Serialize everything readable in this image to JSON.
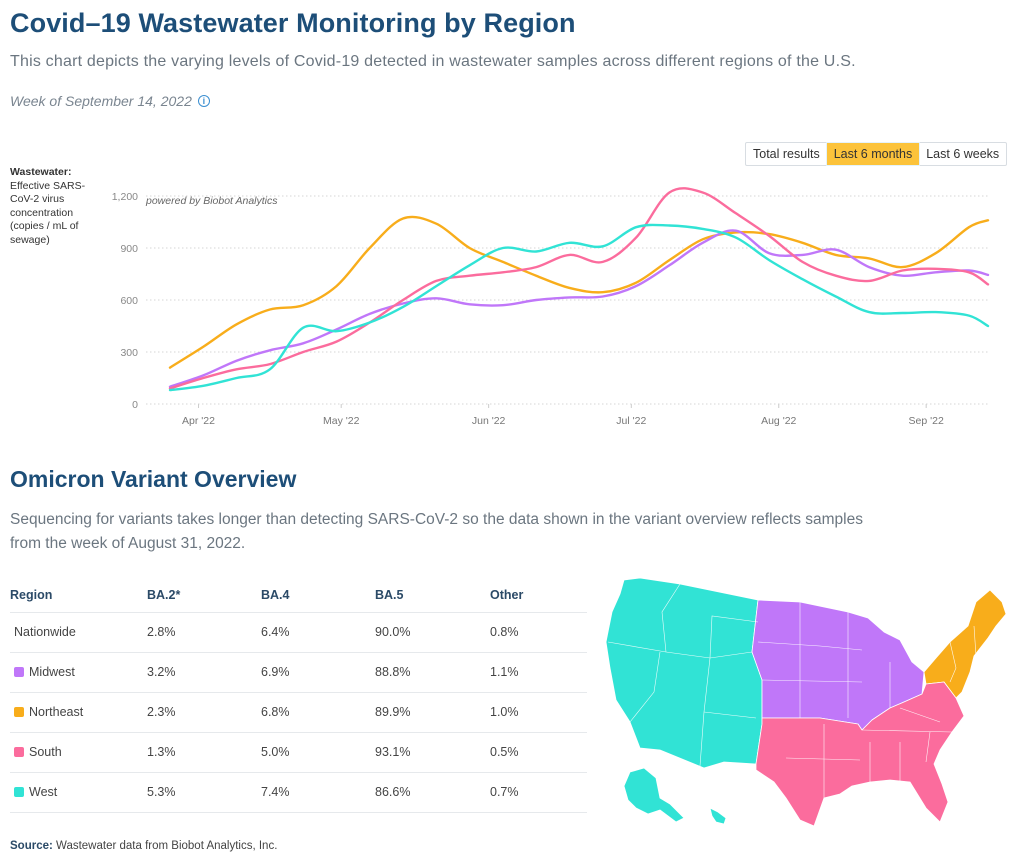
{
  "header": {
    "title": "Covid–19 Wastewater Monitoring by Region",
    "subtitle": "This chart depicts the varying levels of Covid-19 detected in wastewater samples across different regions of the U.S.",
    "week": "Week of September 14, 2022",
    "info_icon": "info-icon"
  },
  "range_toggle": {
    "options": [
      "Total results",
      "Last 6 months",
      "Last 6 weeks"
    ],
    "selected": "Last 6 months"
  },
  "y_axis_label": {
    "bold": "Wastewater:",
    "text": "Effective SARS-CoV-2 virus concentration (copies / mL of sewage)"
  },
  "watermark": "powered by Biobot Analytics",
  "colors": {
    "Northeast": "#f8ad1b",
    "Midwest": "#c077f9",
    "South": "#fb6c9d",
    "West": "#31e3d5",
    "title": "#1d4e78",
    "toggle_active": "#fcc33b"
  },
  "chart_data": {
    "type": "line",
    "title": "Covid–19 Wastewater Monitoring by Region",
    "xlabel": "",
    "ylabel": "Wastewater: Effective SARS-CoV-2 virus concentration (copies / mL of sewage)",
    "ylim": [
      0,
      1200
    ],
    "yticks": [
      0,
      300,
      600,
      900,
      1200
    ],
    "ytick_labels": [
      "0",
      "300",
      "600",
      "900",
      "1,200"
    ],
    "xtick_labels": [
      "Apr '22",
      "May '22",
      "Jun '22",
      "Jul '22",
      "Aug '22",
      "Sep '22"
    ],
    "x_start": "2022-03-26",
    "x_end": "2022-09-14",
    "grid": true,
    "legend": "none",
    "x": [
      "2022-03-26",
      "2022-04-02",
      "2022-04-09",
      "2022-04-16",
      "2022-04-23",
      "2022-04-30",
      "2022-05-07",
      "2022-05-14",
      "2022-05-21",
      "2022-05-28",
      "2022-06-04",
      "2022-06-11",
      "2022-06-18",
      "2022-06-25",
      "2022-07-02",
      "2022-07-09",
      "2022-07-16",
      "2022-07-23",
      "2022-07-30",
      "2022-08-06",
      "2022-08-13",
      "2022-08-20",
      "2022-08-27",
      "2022-09-03",
      "2022-09-10",
      "2022-09-14"
    ],
    "series": [
      {
        "name": "Northeast",
        "values": [
          210,
          330,
          460,
          545,
          570,
          680,
          900,
          1070,
          1040,
          900,
          820,
          740,
          670,
          645,
          700,
          830,
          950,
          990,
          980,
          930,
          860,
          840,
          790,
          870,
          1020,
          1060
        ]
      },
      {
        "name": "Midwest",
        "values": [
          100,
          165,
          250,
          310,
          350,
          430,
          520,
          580,
          610,
          575,
          570,
          600,
          615,
          620,
          680,
          800,
          930,
          1000,
          870,
          860,
          890,
          790,
          740,
          760,
          770,
          745
        ]
      },
      {
        "name": "South",
        "values": [
          90,
          150,
          200,
          230,
          300,
          360,
          470,
          600,
          710,
          740,
          760,
          790,
          860,
          820,
          960,
          1220,
          1220,
          1100,
          970,
          820,
          740,
          710,
          770,
          780,
          760,
          690
        ]
      },
      {
        "name": "West",
        "values": [
          80,
          105,
          150,
          200,
          440,
          420,
          470,
          560,
          680,
          800,
          900,
          880,
          930,
          910,
          1020,
          1030,
          1010,
          960,
          830,
          720,
          620,
          530,
          525,
          530,
          510,
          450
        ]
      }
    ]
  },
  "variants": {
    "title": "Omicron Variant Overview",
    "subtitle": "Sequencing for variants takes longer than detecting SARS-CoV-2 so the data shown in the variant overview reflects samples from the week of August 31, 2022.",
    "columns": [
      "Region",
      "BA.2*",
      "BA.4",
      "BA.5",
      "Other"
    ],
    "rows": [
      {
        "region": "Nationwide",
        "swatch": null,
        "ba2": "2.8%",
        "ba4": "6.4%",
        "ba5": "90.0%",
        "other": "0.8%"
      },
      {
        "region": "Midwest",
        "swatch": "#c077f9",
        "ba2": "3.2%",
        "ba4": "6.9%",
        "ba5": "88.8%",
        "other": "1.1%"
      },
      {
        "region": "Northeast",
        "swatch": "#f8ad1b",
        "ba2": "2.3%",
        "ba4": "6.8%",
        "ba5": "89.9%",
        "other": "1.0%"
      },
      {
        "region": "South",
        "swatch": "#fb6c9d",
        "ba2": "1.3%",
        "ba4": "5.0%",
        "ba5": "93.1%",
        "other": "0.5%"
      },
      {
        "region": "West",
        "swatch": "#31e3d5",
        "ba2": "5.3%",
        "ba4": "7.4%",
        "ba5": "86.6%",
        "other": "0.7%"
      }
    ]
  },
  "map": {
    "regions": [
      "West",
      "Midwest",
      "Northeast",
      "South"
    ]
  },
  "source": {
    "label": "Source:",
    "text": " Wastewater data from Biobot Analytics, Inc."
  }
}
